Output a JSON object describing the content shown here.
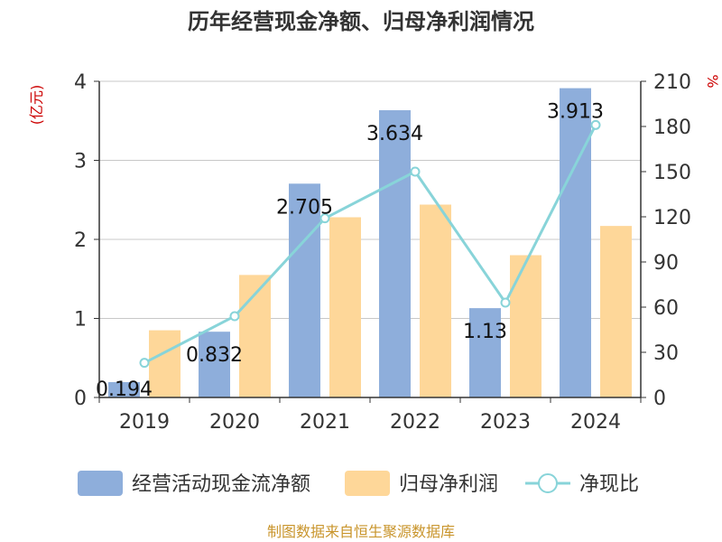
{
  "chart_data": {
    "type": "bar",
    "title": "历年经营现金净额、归母净利润情况",
    "left_unit": "(亿元)",
    "right_unit": "%",
    "categories": [
      "2019",
      "2020",
      "2021",
      "2022",
      "2023",
      "2024"
    ],
    "y_left": {
      "min": 0,
      "max": 4,
      "ticks": [
        "0",
        "1",
        "2",
        "3",
        "4"
      ]
    },
    "y_right": {
      "min": 0,
      "max": 210,
      "ticks": [
        "0",
        "30",
        "60",
        "90",
        "120",
        "150",
        "180",
        "210"
      ]
    },
    "series": [
      {
        "name": "经营活动现金流净额",
        "kind": "bar",
        "axis": "left",
        "color": "#8eaedb",
        "values": [
          0.194,
          0.832,
          2.705,
          3.634,
          1.13,
          3.913
        ],
        "labels": [
          "0.194",
          "0.832",
          "2.705",
          "3.634",
          "1.13",
          "3.913"
        ]
      },
      {
        "name": "归母净利润",
        "kind": "bar",
        "axis": "left",
        "color": "#fed799",
        "values": [
          0.85,
          1.55,
          2.28,
          2.44,
          1.8,
          2.17
        ]
      },
      {
        "name": "净现比",
        "kind": "line",
        "axis": "right",
        "color": "#88d4d9",
        "values": [
          23,
          54,
          119,
          150,
          63,
          181
        ]
      }
    ],
    "legend_position": "bottom",
    "grid": true
  },
  "footer": {
    "source": "制图数据来自恒生聚源数据库"
  }
}
